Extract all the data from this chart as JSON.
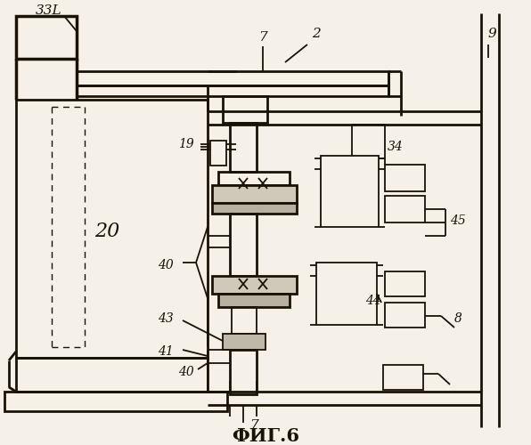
{
  "title": "ФИГ.6",
  "bg_color": "#f5f0e8",
  "line_color": "#1a1205",
  "figsize": [
    5.96,
    5.0
  ],
  "dpi": 100
}
